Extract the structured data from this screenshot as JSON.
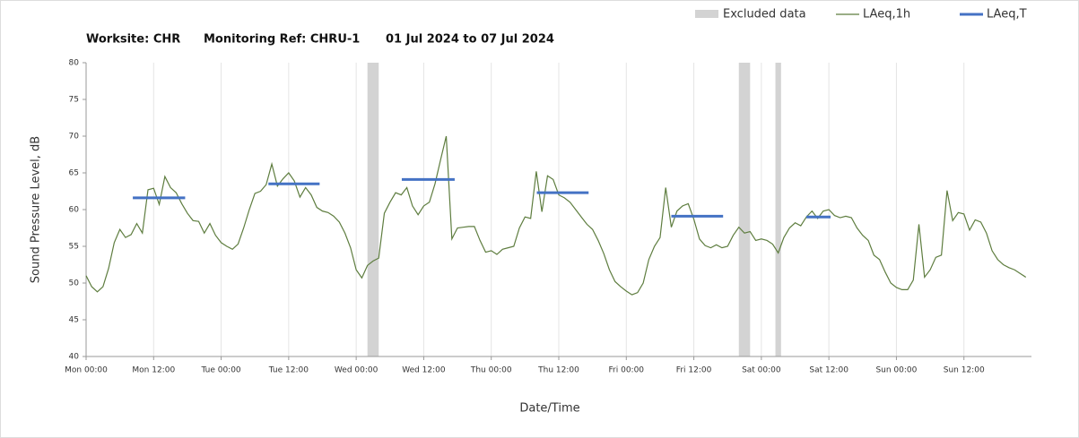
{
  "chart_data": {
    "type": "line",
    "title": [
      "Worksite: CHR",
      "Monitoring Ref: CHRU-1",
      "01 Jul 2024 to 07 Jul 2024"
    ],
    "xlabel": "Date/Time",
    "ylabel": "Sound Pressure Level, dB",
    "xlim": [
      0,
      168
    ],
    "ylim": [
      40,
      80
    ],
    "yticks": [
      40,
      45,
      50,
      55,
      60,
      65,
      70,
      75,
      80
    ],
    "xticks": [
      {
        "value": 0,
        "label": "Mon 00:00"
      },
      {
        "value": 12,
        "label": "Mon 12:00"
      },
      {
        "value": 24,
        "label": "Tue 00:00"
      },
      {
        "value": 36,
        "label": "Tue 12:00"
      },
      {
        "value": 48,
        "label": "Wed 00:00"
      },
      {
        "value": 60,
        "label": "Wed 12:00"
      },
      {
        "value": 72,
        "label": "Thu 00:00"
      },
      {
        "value": 84,
        "label": "Thu 12:00"
      },
      {
        "value": 96,
        "label": "Fri 00:00"
      },
      {
        "value": 108,
        "label": "Fri 12:00"
      },
      {
        "value": 120,
        "label": "Sat 00:00"
      },
      {
        "value": 132,
        "label": "Sat 12:00"
      },
      {
        "value": 144,
        "label": "Sun 00:00"
      },
      {
        "value": 156,
        "label": "Sun 12:00"
      }
    ],
    "grid": "x",
    "excluded": {
      "name": "Excluded data",
      "color": "#d3d3d3",
      "ranges": [
        [
          50,
          52
        ],
        [
          116,
          118
        ],
        [
          122.5,
          123.5
        ]
      ]
    },
    "x": [
      0,
      1,
      2,
      3,
      4,
      5,
      6,
      7,
      8,
      9,
      10,
      11,
      12,
      13,
      14,
      15,
      16,
      17,
      18,
      19,
      20,
      21,
      22,
      23,
      24,
      25,
      26,
      27,
      28,
      29,
      30,
      31,
      32,
      33,
      34,
      35,
      36,
      37,
      38,
      39,
      40,
      41,
      42,
      43,
      44,
      45,
      46,
      47,
      48,
      49,
      50,
      51,
      52,
      53,
      54,
      55,
      56,
      57,
      58,
      59,
      60,
      61,
      62,
      63,
      64,
      65,
      66,
      67,
      68,
      69,
      70,
      71,
      72,
      73,
      74,
      75,
      76,
      77,
      78,
      79,
      80,
      81,
      82,
      83,
      84,
      85,
      86,
      87,
      88,
      89,
      90,
      91,
      92,
      93,
      94,
      95,
      96,
      97,
      98,
      99,
      100,
      101,
      102,
      103,
      104,
      105,
      106,
      107,
      108,
      109,
      110,
      111,
      112,
      113,
      114,
      115,
      116,
      117,
      118,
      119,
      120,
      121,
      122,
      123,
      124,
      125,
      126,
      127,
      128,
      129,
      130,
      131,
      132,
      133,
      134,
      135,
      136,
      137,
      138,
      139,
      140,
      141,
      142,
      143,
      144,
      145,
      146,
      147,
      148,
      149,
      150,
      151,
      152,
      153,
      154,
      155,
      156,
      157,
      158,
      159,
      160,
      161,
      162,
      163,
      164,
      165,
      166,
      167
    ],
    "series": [
      {
        "name": "LAeq,1h",
        "color": "#5e7d3f",
        "values": [
          51,
          49.5,
          48.8,
          49.5,
          52,
          55.5,
          57.3,
          56.2,
          56.6,
          58.1,
          56.8,
          62.7,
          62.9,
          60.7,
          64.5,
          63,
          62.3,
          60.8,
          59.5,
          58.5,
          58.4,
          56.8,
          58.1,
          56.5,
          55.5,
          55,
          54.6,
          55.3,
          57.5,
          60,
          62.2,
          62.5,
          63.4,
          66.2,
          63.2,
          64.2,
          65,
          63.9,
          61.7,
          63,
          62,
          60.3,
          59.8,
          59.6,
          59.1,
          58.3,
          56.8,
          54.8,
          51.8,
          50.7,
          52.4,
          53,
          53.4,
          59.5,
          61,
          62.3,
          62,
          63,
          60.5,
          59.3,
          60.5,
          61,
          63.5,
          66.8,
          70,
          56,
          57.5,
          57.6,
          57.7,
          57.7,
          55.8,
          54.2,
          54.4,
          53.9,
          54.6,
          54.8,
          55,
          57.5,
          59,
          58.8,
          65.2,
          59.7,
          64.6,
          64.1,
          62,
          61.6,
          61,
          60,
          59,
          58,
          57.3,
          55.8,
          54,
          51.8,
          50.2,
          49.5,
          48.9,
          48.4,
          48.7,
          50,
          53.2,
          55,
          56.2,
          63,
          57.6,
          59.8,
          60.5,
          60.8,
          58.7,
          56,
          55.1,
          54.8,
          55.2,
          54.8,
          55,
          56.5,
          57.6,
          56.8,
          57,
          55.8,
          56,
          55.8,
          55.3,
          54.1,
          56.2,
          57.5,
          58.2,
          57.8,
          59,
          59.8,
          58.8,
          59.8,
          60,
          59.2,
          58.9,
          59.1,
          58.9,
          57.5,
          56.5,
          55.8,
          53.8,
          53.2,
          51.5,
          50,
          49.4,
          49.1,
          49.1,
          50.4,
          58,
          50.8,
          51.8,
          53.5,
          53.8,
          62.6,
          58.5,
          59.6,
          59.4,
          57.2,
          58.6,
          58.3,
          56.8,
          54.4,
          53.2,
          52.5,
          52.1,
          51.8,
          51.3,
          50.8
        ]
      },
      {
        "name": "LAeq,T",
        "color": "#4472c4",
        "segments": [
          {
            "x": [
              8.3,
              17.6
            ],
            "value": 61.6
          },
          {
            "x": [
              32.4,
              41.5
            ],
            "value": 63.5
          },
          {
            "x": [
              56.1,
              65.5
            ],
            "value": 64.1
          },
          {
            "x": [
              80.1,
              89.3
            ],
            "value": 62.3
          },
          {
            "x": [
              104,
              113.2
            ],
            "value": 59.1
          },
          {
            "x": [
              128,
              132.3
            ],
            "value": 59
          }
        ]
      }
    ]
  }
}
